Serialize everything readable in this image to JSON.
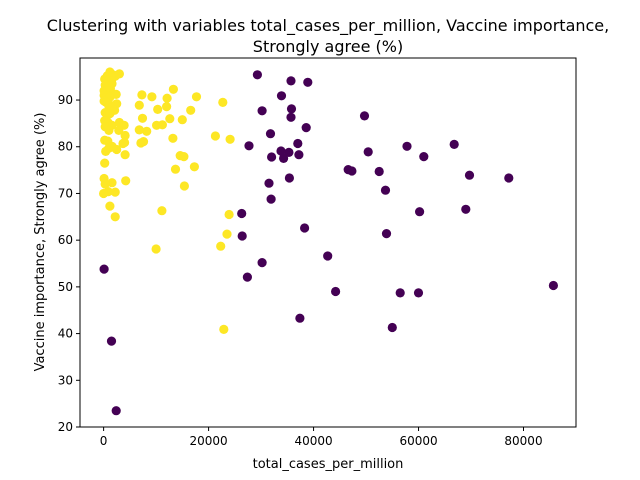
{
  "chart_data": {
    "type": "scatter",
    "title": [
      "Clustering with variables total_cases_per_million, Vaccine importance,",
      "Strongly agree (%)"
    ],
    "xlabel": "total_cases_per_million",
    "ylabel": "Vaccine importance, Strongly agree (%)",
    "xlim": [
      -4500,
      90000
    ],
    "ylim": [
      20,
      99
    ],
    "xticks": [
      0,
      20000,
      40000,
      60000,
      80000
    ],
    "xtick_labels": [
      "0",
      "20000",
      "40000",
      "60000",
      "80000"
    ],
    "yticks": [
      20,
      30,
      40,
      50,
      60,
      70,
      80,
      90
    ],
    "ytick_labels": [
      "20",
      "30",
      "40",
      "50",
      "60",
      "70",
      "80",
      "90"
    ],
    "grid": false,
    "series": [
      {
        "color": "#fde725",
        "x": [
          200,
          700,
          1200,
          1800,
          2200,
          3000,
          500,
          900,
          1500,
          300,
          1000,
          1600,
          100,
          600,
          1300,
          1900,
          2400,
          100,
          400,
          800,
          1200,
          2500,
          100,
          500,
          1000,
          1300,
          2100,
          300,
          800,
          1200,
          200,
          900,
          1600,
          3000,
          3900,
          300,
          1000,
          2900,
          4100,
          200,
          800,
          3700,
          1500,
          4000,
          400,
          1000,
          1600,
          2500,
          4100,
          200,
          1600,
          100,
          300,
          4200,
          900,
          2200,
          0,
          1200,
          2200,
          6800,
          7300,
          9200,
          12100,
          13300,
          17700,
          22700,
          7400,
          10300,
          12000,
          12600,
          16600,
          7100,
          8200,
          10100,
          11200,
          15000,
          6800,
          13200,
          14600,
          15300,
          17300,
          21300,
          24100,
          13700,
          15400,
          7600,
          11100,
          23900,
          10000,
          23500,
          22300,
          22900
        ],
        "y": [
          94.5,
          95.2,
          96,
          95.4,
          95.1,
          95.6,
          94,
          93.6,
          94.1,
          93.2,
          92.9,
          93.5,
          92,
          91.8,
          92.5,
          91.3,
          91.2,
          91,
          90.5,
          90.2,
          90.6,
          89.2,
          89.8,
          89.5,
          88.7,
          88.9,
          87.8,
          87.3,
          86.8,
          87.1,
          85.6,
          85.1,
          84.6,
          85.2,
          84.6,
          84.3,
          83.5,
          83.5,
          82.4,
          81.4,
          81.2,
          80.7,
          79.9,
          80.9,
          79,
          79.7,
          80.1,
          79.4,
          78.3,
          76.5,
          72.3,
          73.2,
          72,
          72.7,
          70.4,
          70.3,
          70,
          67.3,
          65,
          88.9,
          91.1,
          90.7,
          90.4,
          92.3,
          90.7,
          89.5,
          86.1,
          88,
          88.6,
          86,
          87.8,
          80.8,
          83.3,
          84.6,
          84.7,
          85.8,
          83.6,
          81.8,
          78.1,
          77.9,
          75.7,
          82.3,
          81.6,
          75.2,
          71.6,
          81.1,
          66.3,
          65.5,
          58.1,
          61.3,
          58.7,
          40.9
        ]
      },
      {
        "color": "#440154",
        "x": [
          100,
          1500,
          2400,
          29300,
          35700,
          38900,
          33900,
          30200,
          35800,
          27700,
          31800,
          35700,
          49700,
          38600,
          66800,
          57800,
          35300,
          37000,
          50400,
          61000,
          33800,
          32000,
          34300,
          37200,
          46600,
          47300,
          52500,
          69700,
          77200,
          35400,
          31500,
          53700,
          31900,
          60200,
          69000,
          26300,
          38300,
          53900,
          26400,
          42700,
          30200,
          27400,
          44200,
          60000,
          56500,
          37400,
          55000,
          85700
        ],
        "y": [
          53.8,
          38.4,
          23.5,
          95.4,
          94.1,
          93.8,
          90.9,
          87.7,
          88.1,
          80.2,
          82.8,
          86.3,
          86.6,
          84.1,
          80.5,
          80.1,
          78.8,
          80.7,
          78.9,
          77.9,
          79.1,
          77.8,
          77.5,
          78.3,
          75.1,
          74.8,
          74.7,
          73.9,
          73.3,
          73.3,
          72.2,
          70.7,
          68.8,
          66.1,
          66.6,
          65.7,
          62.6,
          61.4,
          60.9,
          56.6,
          55.2,
          52.1,
          49,
          48.7,
          48.7,
          43.3,
          41.3,
          50.3
        ]
      }
    ]
  }
}
